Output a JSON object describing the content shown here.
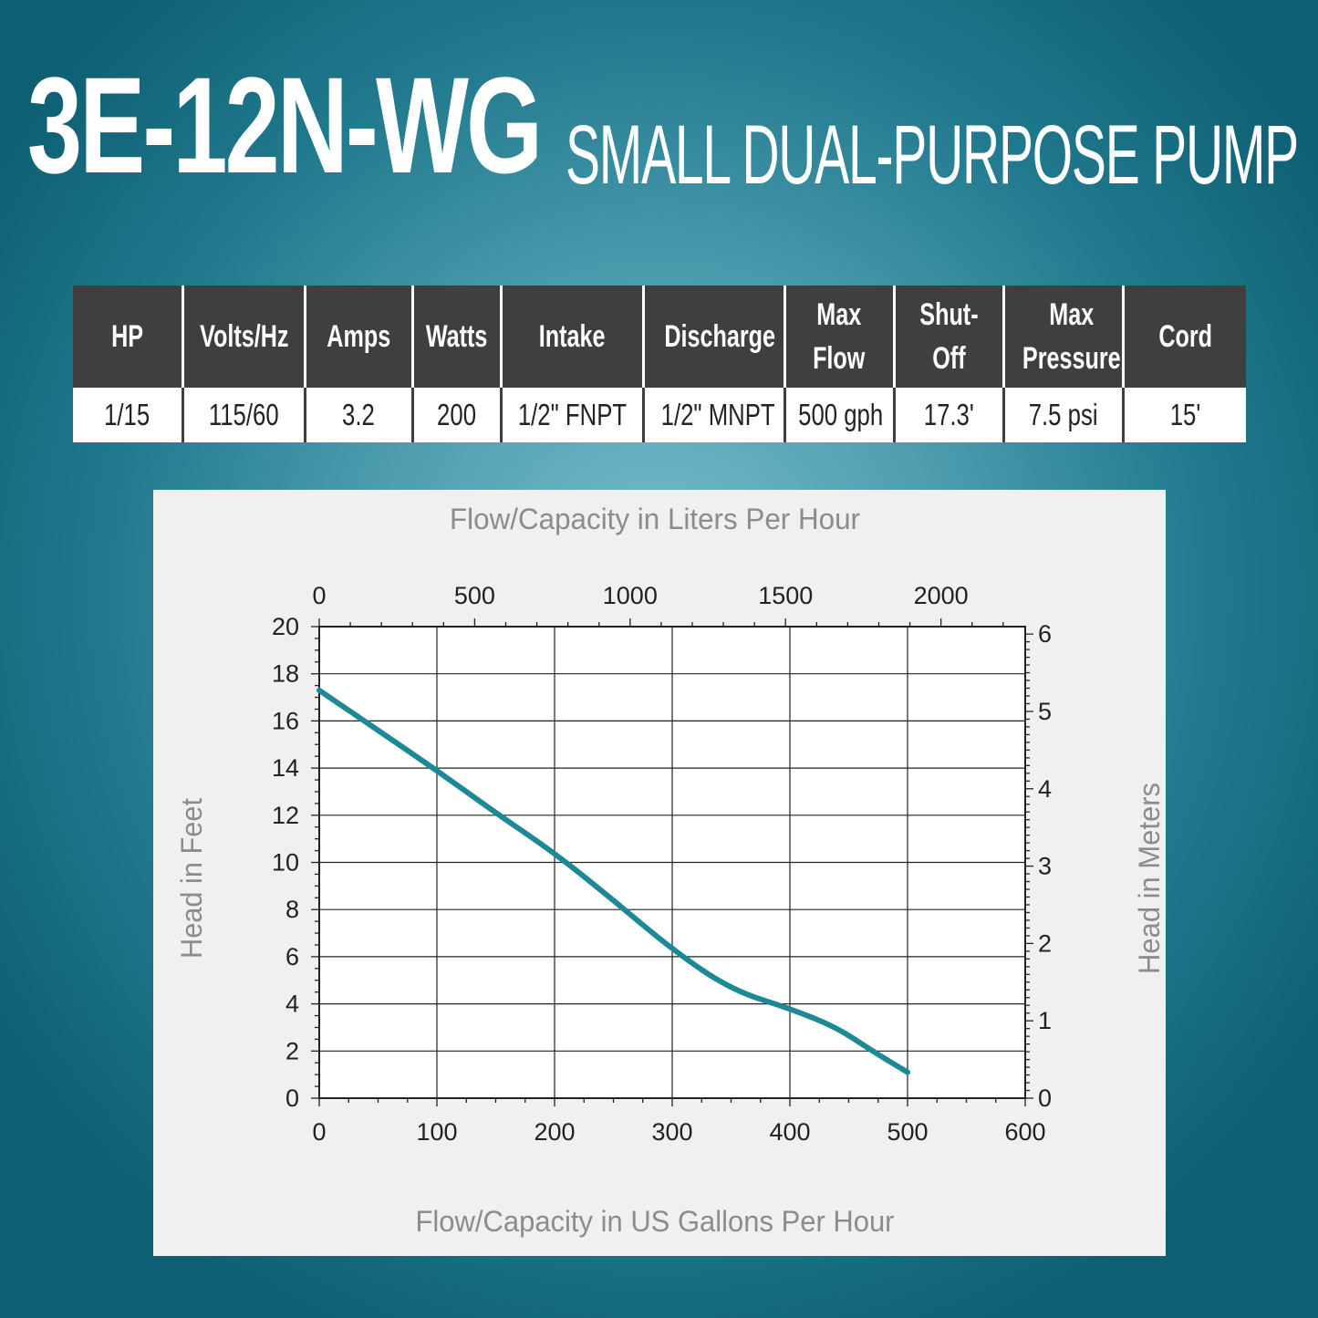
{
  "header": {
    "model": "3E-12N-WG",
    "subtitle": "SMALL DUAL-PURPOSE PUMP"
  },
  "specs": {
    "headers": [
      "HP",
      "Volts/Hz",
      "Amps",
      "Watts",
      "Intake",
      "Discharge",
      "Max\nFlow",
      "Shut-\nOff",
      "Max\nPressure",
      "Cord"
    ],
    "values": [
      "1/15",
      "115/60",
      "3.2",
      "200",
      "1/2\" FNPT",
      "1/2\" MNPT",
      "500 gph",
      "17.3'",
      "7.5 psi",
      "15'"
    ]
  },
  "chart_data": {
    "type": "line",
    "title": "",
    "xlabel": "Flow/Capacity in US Gallons Per Hour",
    "ylabel": "Head in Feet",
    "x2label": "Flow/Capacity in Liters Per Hour",
    "y2label": "Head in Meters",
    "xlim": [
      0,
      600
    ],
    "ylim": [
      0,
      20
    ],
    "x2lim": [
      0,
      2271
    ],
    "y2lim": [
      0,
      6.096
    ],
    "xticks": [
      0,
      100,
      200,
      300,
      400,
      500,
      600
    ],
    "yticks": [
      0,
      2,
      4,
      6,
      8,
      10,
      12,
      14,
      16,
      18,
      20
    ],
    "x2ticks": [
      0,
      500,
      1000,
      1500,
      2000
    ],
    "y2ticks": [
      0,
      1,
      2,
      3,
      4,
      5,
      6
    ],
    "grid": true,
    "line_color": "#1d8896",
    "series": [
      {
        "x": [
          0,
          50,
          100,
          150,
          200,
          250,
          300,
          350,
          400,
          440,
          470,
          500
        ],
        "y": [
          17.3,
          15.6,
          13.9,
          12.1,
          10.4,
          8.4,
          6.3,
          4.6,
          3.8,
          3.0,
          2.0,
          1.1
        ]
      }
    ]
  }
}
